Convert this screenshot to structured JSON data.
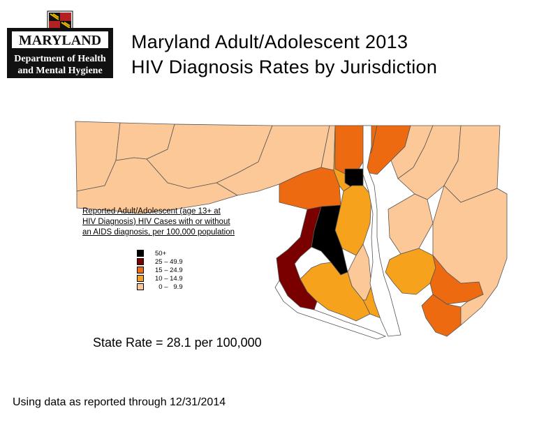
{
  "logo": {
    "state_text": "MARYLAND",
    "agency_line1": "Department of Health",
    "agency_line2": "and Mental Hygiene"
  },
  "title": {
    "line1": "Maryland Adult/Adolescent 2013",
    "line2": "HIV Diagnosis Rates by Jurisdiction"
  },
  "legend": {
    "heading_lines": [
      "Reported Adult/Adolescent (age 13+ at",
      " HIV Diagnosis) HIV Cases with or without",
      "an AIDS diagnosis, per 100,000 population"
    ],
    "items": [
      {
        "label": "50+",
        "color": "#000000"
      },
      {
        "label": "25 – 49.9",
        "color": "#7a0000"
      },
      {
        "label": "15 – 24.9",
        "color": "#ee6a10"
      },
      {
        "label": "10 – 14.9",
        "color": "#f7a21c"
      },
      {
        "label": "  0 –   9.9",
        "color": "#fdc898"
      }
    ]
  },
  "state_rate": "State Rate = 28.1 per 100,000",
  "footnote": "Using data as reported through 12/31/2014",
  "colors": {
    "rate_50_plus": "#000000",
    "rate_25_49": "#7a0000",
    "rate_15_24": "#ee6a10",
    "rate_10_14": "#f7a21c",
    "rate_0_9": "#fdc898",
    "water": "#ffffff",
    "border": "#555555"
  }
}
